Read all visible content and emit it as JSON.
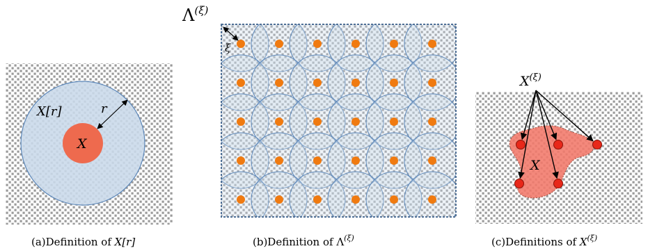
{
  "panel_a": {
    "label_region": "X[r]",
    "label_radius": "r",
    "label_center": "X",
    "caption_prefix": "(a)Definition of ",
    "caption_math": "X[r]"
  },
  "panel_b": {
    "label_lattice": "Λ",
    "label_lattice_sup": "(ξ)",
    "label_spacing": "ξ",
    "caption_prefix": "(b)Definition of ",
    "caption_math": "Λ",
    "caption_sup": "(ξ)"
  },
  "panel_c": {
    "label_set": "X",
    "label_set_sup": "(ξ)",
    "label_region": "X",
    "caption_prefix": "(c)Definitions of ",
    "caption_math": "X",
    "caption_sup": "(ξ)"
  },
  "colors": {
    "dot_pattern": "#9a9a9a",
    "disk_fill": "#c9d9ea",
    "disk_stroke": "#5b86b8",
    "core_fill": "#ee6a4e",
    "lattice_point": "#f07a10",
    "region_fill": "#f2796a",
    "region_point": "#e8281a"
  }
}
